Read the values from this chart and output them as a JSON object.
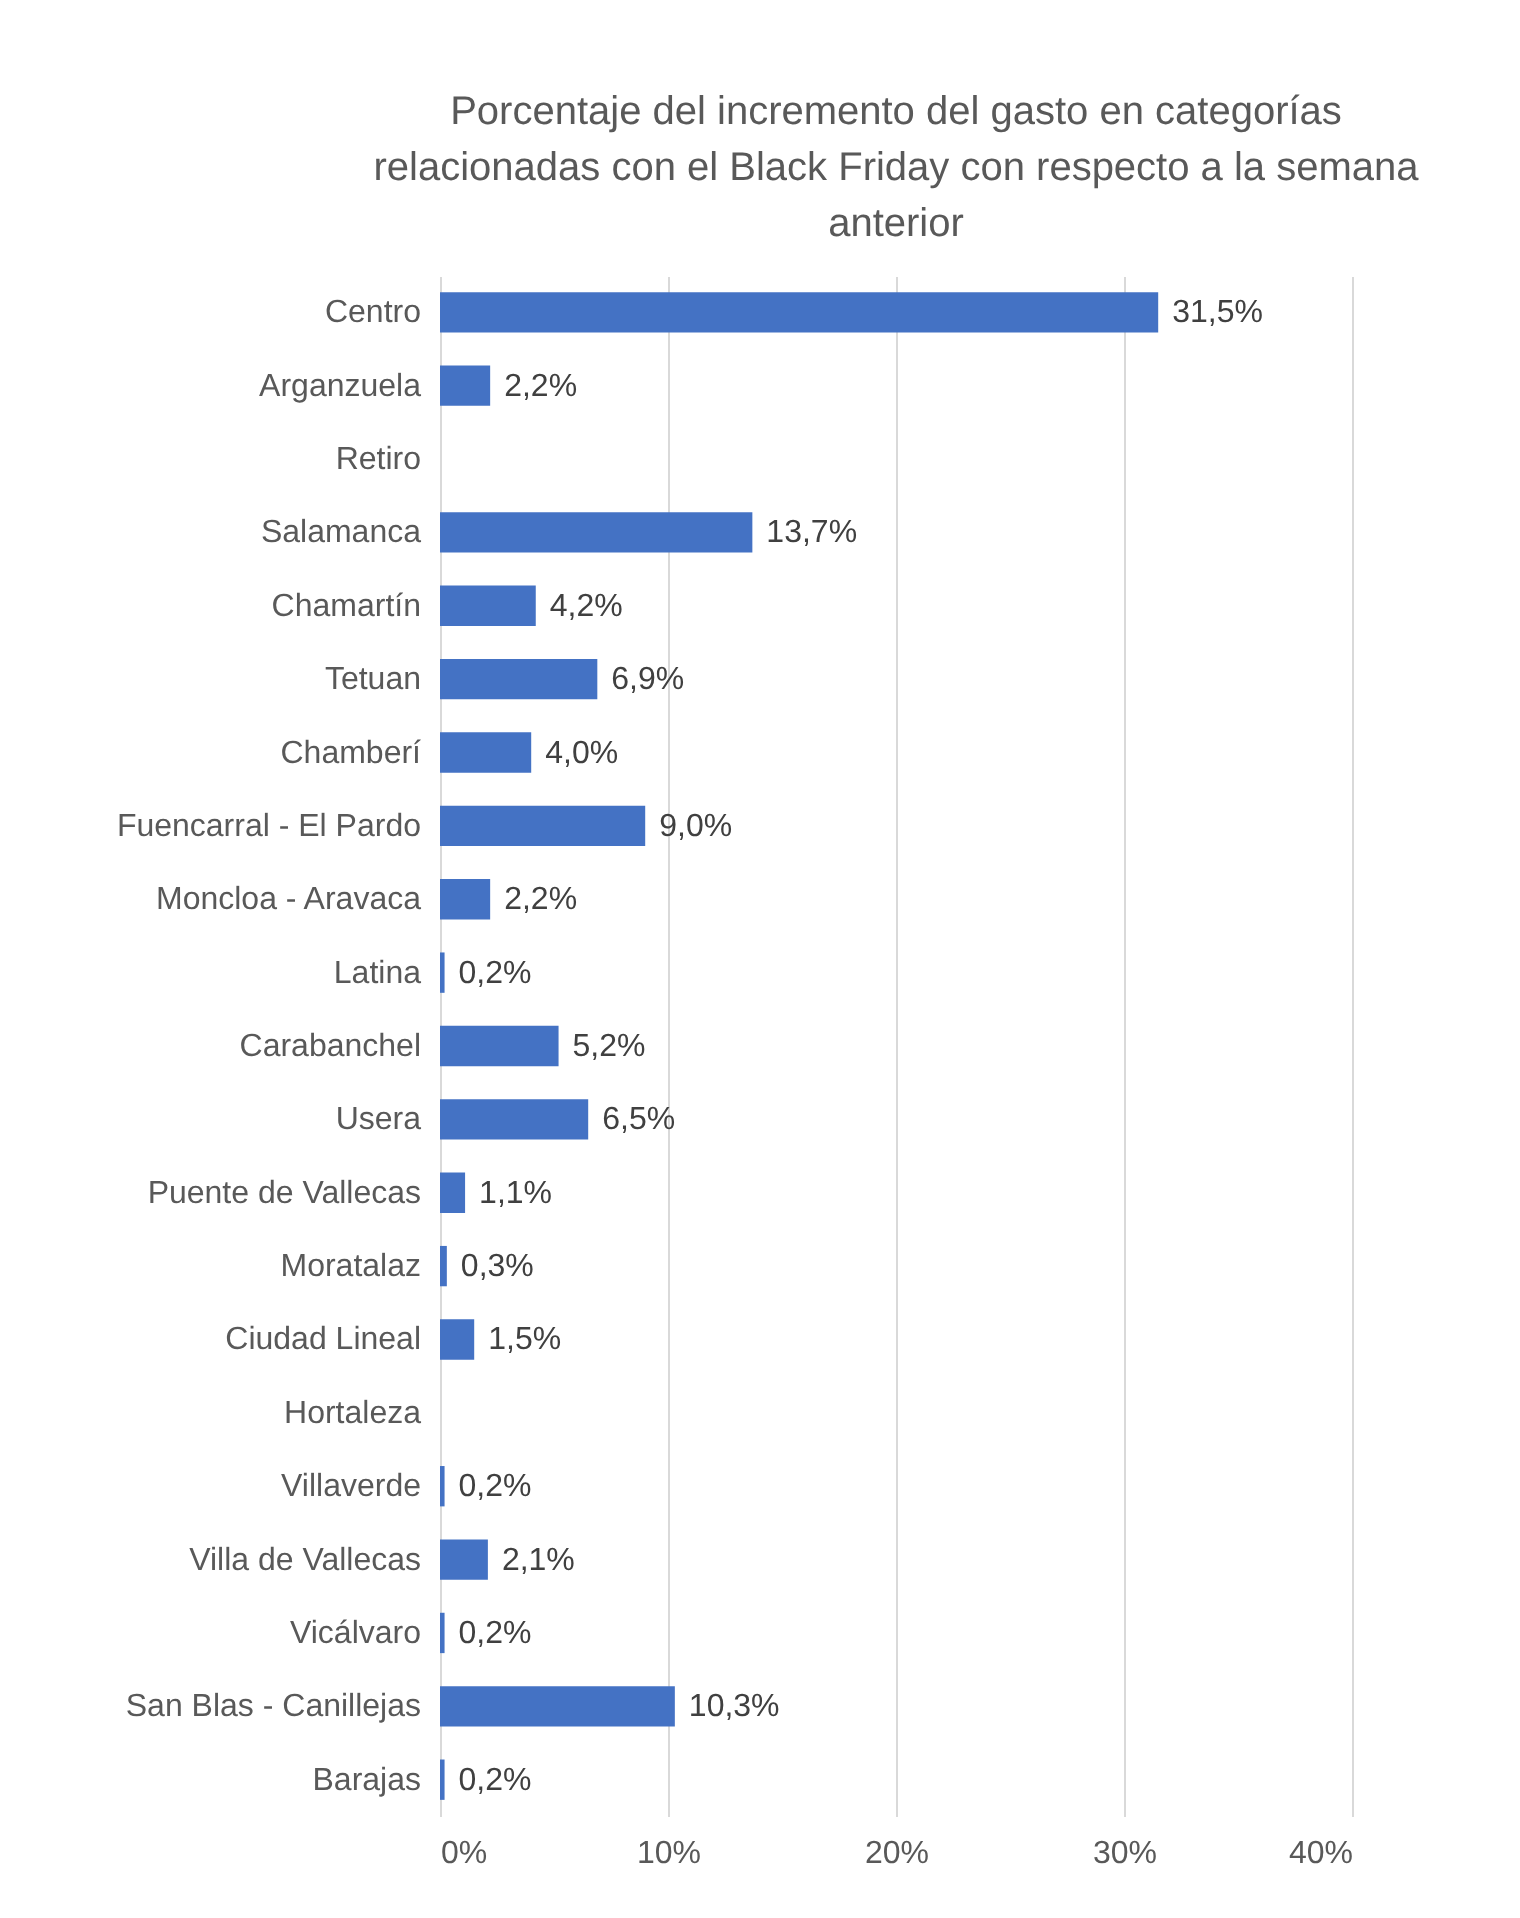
{
  "chart_data": {
    "type": "bar",
    "orientation": "horizontal",
    "title": "Porcentaje del incremento del gasto en categorías relacionadas con el Black Friday con respecto a la semana anterior",
    "categories": [
      "Centro",
      "Arganzuela",
      "Retiro",
      "Salamanca",
      "Chamartín",
      "Tetuan",
      "Chamberí",
      "Fuencarral - El Pardo",
      "Moncloa - Aravaca",
      "Latina",
      "Carabanchel",
      "Usera",
      "Puente de Vallecas",
      "Moratalaz",
      "Ciudad Lineal",
      "Hortaleza",
      "Villaverde",
      "Villa de Vallecas",
      "Vicálvaro",
      "San Blas - Canillejas",
      "Barajas"
    ],
    "values": [
      31.5,
      2.2,
      null,
      13.7,
      4.2,
      6.9,
      4.0,
      9.0,
      2.2,
      0.2,
      5.2,
      6.5,
      1.1,
      0.3,
      1.5,
      null,
      0.2,
      2.1,
      0.2,
      10.3,
      0.2
    ],
    "value_labels": [
      "31,5%",
      "2,2%",
      null,
      "13,7%",
      "4,2%",
      "6,9%",
      "4,0%",
      "9,0%",
      "2,2%",
      "0,2%",
      "5,2%",
      "6,5%",
      "1,1%",
      "0,3%",
      "1,5%",
      null,
      "0,2%",
      "2,1%",
      "0,2%",
      "10,3%",
      "0,2%"
    ],
    "color": "#4472c4",
    "xlim": [
      0,
      40
    ],
    "xticks": [
      {
        "value": 0,
        "label": "0%"
      },
      {
        "value": 10,
        "label": "10%"
      },
      {
        "value": 20,
        "label": "20%"
      },
      {
        "value": 30,
        "label": "30%"
      },
      {
        "value": 40,
        "label": "40%"
      }
    ],
    "grid": "x"
  }
}
